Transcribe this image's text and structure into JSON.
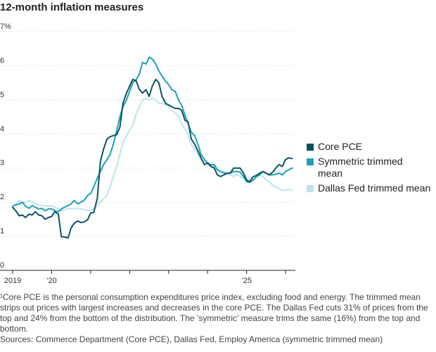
{
  "chart_data": {
    "type": "line",
    "title": "12-month inflation measures",
    "xlabel": "",
    "ylabel": "",
    "x_range": [
      2019.0,
      2026.25
    ],
    "ylim": [
      0,
      7
    ],
    "y_ticks": [
      "0",
      "1",
      "2",
      "3",
      "4",
      "5",
      "6",
      "7%"
    ],
    "x_ticks": [
      "2019",
      "’20",
      "’25"
    ],
    "grid": true,
    "legend_position": "right",
    "series": [
      {
        "name": "Core PCE",
        "color": "#0a5460",
        "x": [
          2019.0,
          2019.08,
          2019.17,
          2019.25,
          2019.33,
          2019.42,
          2019.5,
          2019.58,
          2019.67,
          2019.75,
          2019.83,
          2019.92,
          2020.0,
          2020.08,
          2020.17,
          2020.25,
          2020.33,
          2020.42,
          2020.5,
          2020.58,
          2020.67,
          2020.75,
          2020.83,
          2020.92,
          2021.0,
          2021.08,
          2021.17,
          2021.25,
          2021.33,
          2021.42,
          2021.5,
          2021.58,
          2021.67,
          2021.75,
          2021.83,
          2021.92,
          2022.0,
          2022.08,
          2022.17,
          2022.25,
          2022.33,
          2022.42,
          2022.5,
          2022.58,
          2022.67,
          2022.75,
          2022.83,
          2022.92,
          2023.0,
          2023.08,
          2023.17,
          2023.25,
          2023.33,
          2023.42,
          2023.5,
          2023.58,
          2023.67,
          2023.75,
          2023.83,
          2023.92,
          2024.0,
          2024.08,
          2024.17,
          2024.25,
          2024.33,
          2024.42,
          2024.5,
          2024.58,
          2024.67,
          2024.75,
          2024.83,
          2024.92,
          2025.0,
          2025.08,
          2025.17,
          2025.25,
          2025.33,
          2025.42,
          2025.5,
          2025.58,
          2025.67,
          2025.75,
          2025.83,
          2025.92,
          2026.0,
          2026.08,
          2026.17
        ],
        "values": [
          1.85,
          1.75,
          1.6,
          1.62,
          1.55,
          1.65,
          1.62,
          1.72,
          1.62,
          1.6,
          1.5,
          1.55,
          1.58,
          1.72,
          1.65,
          0.98,
          0.98,
          0.95,
          1.25,
          1.38,
          1.45,
          1.4,
          1.42,
          1.48,
          1.68,
          1.7,
          2.1,
          3.2,
          3.55,
          3.85,
          3.92,
          3.95,
          3.98,
          4.2,
          4.9,
          5.2,
          5.4,
          5.6,
          5.55,
          5.3,
          5.2,
          5.3,
          5.1,
          5.4,
          5.6,
          5.5,
          5.1,
          4.9,
          4.85,
          4.8,
          4.75,
          4.75,
          4.7,
          4.4,
          4.35,
          3.85,
          3.7,
          3.5,
          3.3,
          3.1,
          3.15,
          3.05,
          3.0,
          2.8,
          2.75,
          2.8,
          2.85,
          2.85,
          3.0,
          3.0,
          3.0,
          2.85,
          2.65,
          2.6,
          2.75,
          2.78,
          2.85,
          2.9,
          2.85,
          2.8,
          2.88,
          3.0,
          3.1,
          3.05,
          3.25,
          3.3,
          3.28
        ]
      },
      {
        "name": "Symmetric trimmed mean",
        "color": "#1aa2b4",
        "x": [
          2019.0,
          2019.08,
          2019.17,
          2019.25,
          2019.33,
          2019.42,
          2019.5,
          2019.58,
          2019.67,
          2019.75,
          2019.83,
          2019.92,
          2020.0,
          2020.08,
          2020.17,
          2020.25,
          2020.33,
          2020.42,
          2020.5,
          2020.58,
          2020.67,
          2020.75,
          2020.83,
          2020.92,
          2021.0,
          2021.08,
          2021.17,
          2021.25,
          2021.33,
          2021.42,
          2021.5,
          2021.58,
          2021.67,
          2021.75,
          2021.83,
          2021.92,
          2022.0,
          2022.08,
          2022.17,
          2022.25,
          2022.33,
          2022.42,
          2022.5,
          2022.58,
          2022.67,
          2022.75,
          2022.83,
          2022.92,
          2023.0,
          2023.08,
          2023.17,
          2023.25,
          2023.33,
          2023.42,
          2023.5,
          2023.58,
          2023.67,
          2023.75,
          2023.83,
          2023.92,
          2024.0,
          2024.08,
          2024.17,
          2024.25,
          2024.33,
          2024.42,
          2024.5,
          2024.58,
          2024.67,
          2024.75,
          2024.83,
          2024.92,
          2025.0,
          2025.08,
          2025.17,
          2025.25,
          2025.33,
          2025.42,
          2025.5,
          2025.58,
          2025.67,
          2025.75,
          2025.83,
          2025.92,
          2026.0,
          2026.08,
          2026.17
        ],
        "values": [
          1.88,
          1.92,
          1.95,
          2.0,
          1.88,
          1.82,
          1.9,
          1.85,
          1.8,
          1.82,
          1.75,
          1.8,
          1.8,
          1.75,
          1.72,
          1.8,
          1.85,
          1.9,
          1.95,
          2.05,
          1.95,
          2.0,
          2.05,
          2.2,
          2.25,
          2.45,
          2.7,
          2.9,
          3.1,
          3.25,
          3.4,
          3.7,
          4.1,
          4.5,
          4.8,
          5.0,
          5.25,
          5.5,
          5.6,
          5.75,
          6.1,
          6.05,
          6.25,
          6.2,
          6.05,
          5.85,
          5.7,
          5.55,
          5.45,
          5.3,
          5.25,
          5.0,
          4.85,
          4.55,
          4.3,
          4.05,
          3.95,
          3.7,
          3.4,
          3.25,
          3.15,
          3.1,
          3.1,
          2.95,
          2.9,
          2.85,
          2.85,
          2.85,
          2.9,
          2.9,
          2.88,
          2.75,
          2.6,
          2.58,
          2.65,
          2.75,
          2.8,
          2.9,
          2.85,
          2.8,
          2.8,
          2.82,
          2.85,
          2.8,
          2.9,
          2.95,
          3.0
        ]
      },
      {
        "name": "Dallas Fed trimmed mean",
        "color": "#bfe3ec",
        "x": [
          2019.0,
          2019.08,
          2019.17,
          2019.25,
          2019.33,
          2019.42,
          2019.5,
          2019.58,
          2019.67,
          2019.75,
          2019.83,
          2019.92,
          2020.0,
          2020.08,
          2020.17,
          2020.25,
          2020.33,
          2020.42,
          2020.5,
          2020.58,
          2020.67,
          2020.75,
          2020.83,
          2020.92,
          2021.0,
          2021.08,
          2021.17,
          2021.25,
          2021.33,
          2021.42,
          2021.5,
          2021.58,
          2021.67,
          2021.75,
          2021.83,
          2021.92,
          2022.0,
          2022.08,
          2022.17,
          2022.25,
          2022.33,
          2022.42,
          2022.5,
          2022.58,
          2022.67,
          2022.75,
          2022.83,
          2022.92,
          2023.0,
          2023.08,
          2023.17,
          2023.25,
          2023.33,
          2023.42,
          2023.5,
          2023.58,
          2023.67,
          2023.75,
          2023.83,
          2023.92,
          2024.0,
          2024.08,
          2024.17,
          2024.25,
          2024.33,
          2024.42,
          2024.5,
          2024.58,
          2024.67,
          2024.75,
          2024.83,
          2024.92,
          2025.0,
          2025.08,
          2025.17,
          2025.25,
          2025.33,
          2025.42,
          2025.5,
          2025.58,
          2025.67,
          2025.75,
          2025.83,
          2025.92,
          2026.0,
          2026.08,
          2026.17
        ],
        "values": [
          1.88,
          1.95,
          2.05,
          1.98,
          2.0,
          2.05,
          2.0,
          1.95,
          1.92,
          1.9,
          1.9,
          1.88,
          1.9,
          1.85,
          1.8,
          1.75,
          1.78,
          1.82,
          1.8,
          1.8,
          1.82,
          1.8,
          1.78,
          1.75,
          1.75,
          1.8,
          1.9,
          2.0,
          2.1,
          2.2,
          2.45,
          2.75,
          3.05,
          3.4,
          3.75,
          3.95,
          4.1,
          4.25,
          4.6,
          4.8,
          5.0,
          5.05,
          5.0,
          5.05,
          5.0,
          4.9,
          4.9,
          4.85,
          4.8,
          4.7,
          4.6,
          4.55,
          4.3,
          4.15,
          3.95,
          3.7,
          3.55,
          3.4,
          3.25,
          3.2,
          3.15,
          3.1,
          3.05,
          2.95,
          2.9,
          2.9,
          2.8,
          2.8,
          2.75,
          2.82,
          2.75,
          2.7,
          2.65,
          2.7,
          2.65,
          2.72,
          2.8,
          2.75,
          2.65,
          2.6,
          2.5,
          2.45,
          2.4,
          2.35,
          2.35,
          2.38,
          2.35
        ]
      }
    ]
  },
  "notes": {
    "footnote": "¹Core PCE is the personal consumption expenditures price index, excluding food and energy. The trimmed mean strips out prices with largest increases and decreases in the core PCE. The Dallas Fed cuts 31% of prices from the top and 24% from the bottom of the distribution. The ’symmetric’ measure trims the same (16%) from the top and bottom.",
    "sources": "Sources: Commerce Department (Core PCE), Dallas Fed, Employ America (symmetric trimmed mean)"
  }
}
